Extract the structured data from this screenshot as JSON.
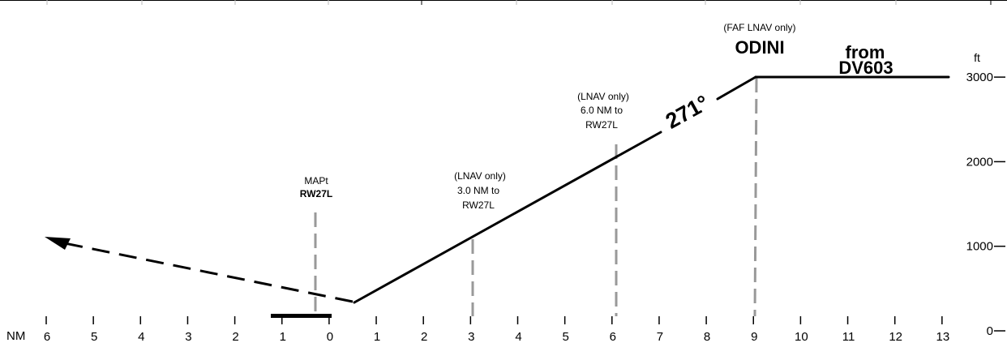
{
  "axes": {
    "distance_unit": "NM",
    "distance_ticks": [
      "6",
      "5",
      "4",
      "3",
      "2",
      "1",
      "0",
      "1",
      "2",
      "3",
      "4",
      "5",
      "6",
      "7",
      "8",
      "9",
      "10",
      "11",
      "12",
      "13"
    ],
    "altitude_unit": "ft",
    "altitude_ticks": [
      "0",
      "1000",
      "2000",
      "3000"
    ]
  },
  "fixes": {
    "mapt": {
      "line1": "MAPt",
      "line2": "RW27L"
    },
    "step3": {
      "line1": "(LNAV only)",
      "line2": "3.0 NM to",
      "line3": "RW27L"
    },
    "step6": {
      "line1": "(LNAV only)",
      "line2": "6.0 NM to",
      "line3": "RW27L"
    },
    "faf": {
      "qualifier": "(FAF LNAV only)",
      "name": "ODINI"
    },
    "initial": {
      "line1": "from",
      "line2": "DV603"
    }
  },
  "course_label": "271°"
}
